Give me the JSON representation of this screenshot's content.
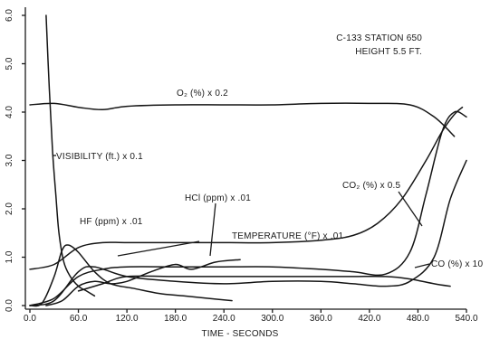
{
  "chart_data": {
    "type": "line",
    "title": "C-133 STATION 650",
    "subtitle": "HEIGHT 5.5 FT.",
    "xlabel": "TIME - SECONDS",
    "ylabel": "",
    "xlim": [
      0,
      540
    ],
    "ylim": [
      0,
      6
    ],
    "x_ticks": [
      "0.0",
      "60.0",
      "120.0",
      "180.0",
      "240.0",
      "300.0",
      "360.0",
      "420.0",
      "480.0",
      "540.0"
    ],
    "y_ticks": [
      "0.0",
      "1.0",
      "2.0",
      "3.0",
      "4.0",
      "5.0",
      "6.0"
    ],
    "grid": false,
    "series": [
      {
        "name": "O₂ (%) x 0.2",
        "x": [
          0,
          30,
          60,
          90,
          120,
          180,
          240,
          300,
          360,
          420,
          470,
          500,
          525
        ],
        "y": [
          4.15,
          4.18,
          4.1,
          4.05,
          4.12,
          4.15,
          4.15,
          4.15,
          4.18,
          4.18,
          4.15,
          3.9,
          3.5
        ]
      },
      {
        "name": "VISIBILITY (ft.) x 0.1",
        "x": [
          20,
          24,
          28,
          32,
          36,
          42,
          50,
          60,
          70,
          80
        ],
        "y": [
          6.0,
          4.5,
          3.2,
          2.3,
          1.5,
          0.9,
          0.6,
          0.4,
          0.3,
          0.2
        ]
      },
      {
        "name": "HF (ppm) x .01",
        "x": [
          0,
          15,
          30,
          40,
          48,
          60,
          80,
          100,
          130,
          160,
          190,
          220,
          250
        ],
        "y": [
          0.0,
          0.05,
          0.6,
          1.15,
          1.25,
          1.1,
          0.7,
          0.45,
          0.35,
          0.25,
          0.2,
          0.15,
          0.1
        ]
      },
      {
        "name": "HCl (ppm) x .01",
        "x": [
          20,
          40,
          60,
          80,
          100,
          120,
          150,
          180,
          200,
          230,
          260
        ],
        "y": [
          0.0,
          0.1,
          0.4,
          0.5,
          0.45,
          0.5,
          0.7,
          0.85,
          0.75,
          0.9,
          0.95
        ]
      },
      {
        "name": "TEMPERATURE (°F) x .01",
        "x": [
          0,
          30,
          60,
          90,
          120,
          180,
          240,
          300,
          360,
          400,
          430,
          460,
          490,
          510,
          525,
          535
        ],
        "y": [
          0.75,
          0.85,
          1.2,
          1.3,
          1.3,
          1.3,
          1.3,
          1.3,
          1.35,
          1.45,
          1.7,
          2.2,
          3.0,
          3.6,
          3.95,
          4.1
        ]
      },
      {
        "name": "CO₂ (%) x 0.5",
        "x": [
          0,
          30,
          60,
          90,
          120,
          180,
          240,
          300,
          360,
          400,
          440,
          470,
          490,
          510,
          525,
          540
        ],
        "y": [
          0.0,
          0.15,
          0.6,
          0.75,
          0.8,
          0.8,
          0.8,
          0.8,
          0.75,
          0.7,
          0.65,
          1.1,
          2.3,
          3.6,
          4.0,
          3.9
        ]
      },
      {
        "name": "CO (%) x 10",
        "x": [
          0,
          30,
          60,
          80,
          120,
          180,
          240,
          300,
          360,
          400,
          440,
          470,
          500,
          520,
          540
        ],
        "y": [
          0.0,
          0.1,
          0.7,
          0.8,
          0.6,
          0.5,
          0.45,
          0.5,
          0.5,
          0.45,
          0.4,
          0.5,
          1.0,
          2.2,
          3.0
        ]
      },
      {
        "name": "",
        "x": [
          60,
          90,
          120,
          180,
          240,
          300,
          360,
          400,
          440,
          470,
          500,
          520
        ],
        "y": [
          0.3,
          0.45,
          0.6,
          0.6,
          0.6,
          0.6,
          0.6,
          0.6,
          0.6,
          0.55,
          0.45,
          0.4
        ]
      }
    ],
    "labels": {
      "o2": "O₂ (%) x 0.2",
      "visibility": "VISIBILITY (ft.) x 0.1",
      "hcl": "HCl (ppm) x .01",
      "hf": "HF (ppm) x .01",
      "temperature": "TEMPERATURE (°F) x .01",
      "co2": "CO₂ (%) x 0.5",
      "co": "CO (%) x 10"
    }
  }
}
